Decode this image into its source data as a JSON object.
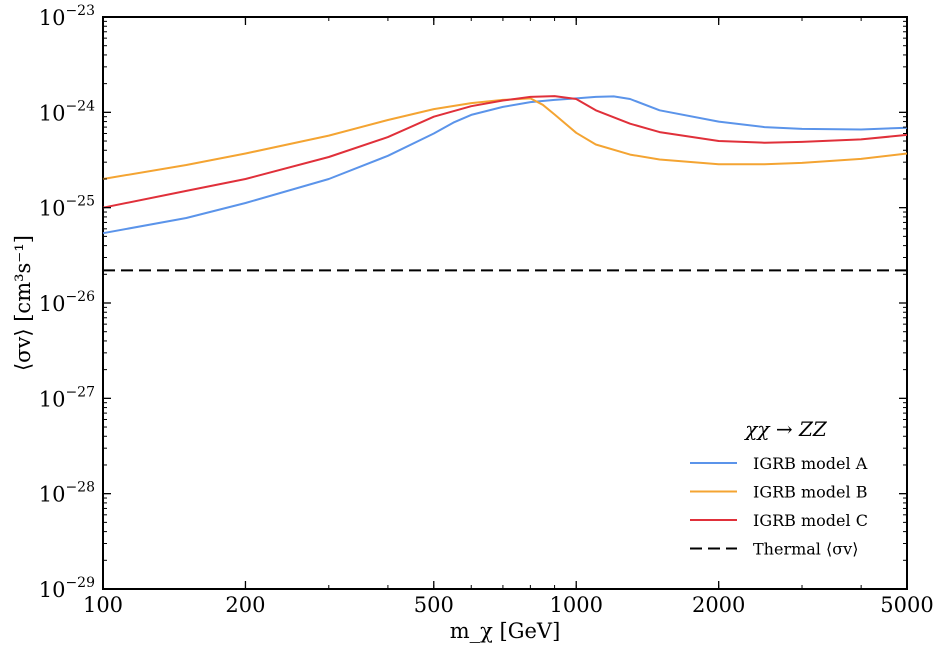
{
  "chart_data": {
    "type": "line",
    "xscale": "log",
    "yscale": "log",
    "xlim": [
      100,
      5000
    ],
    "ylim": [
      1e-29,
      1e-23
    ],
    "xlabel": "m_χ [GeV]",
    "ylabel": "⟨σv⟩ [cm³s⁻¹]",
    "x_ticks": [
      {
        "value": 100,
        "label": "100"
      },
      {
        "value": 200,
        "label": "200"
      },
      {
        "value": 500,
        "label": "500"
      },
      {
        "value": 1000,
        "label": "1000"
      },
      {
        "value": 2000,
        "label": "2000"
      },
      {
        "value": 5000,
        "label": "5000"
      }
    ],
    "y_ticks": [
      {
        "value": 1e-29,
        "base": "10",
        "exp": "−29"
      },
      {
        "value": 1e-28,
        "base": "10",
        "exp": "−28"
      },
      {
        "value": 1e-27,
        "base": "10",
        "exp": "−27"
      },
      {
        "value": 1e-26,
        "base": "10",
        "exp": "−26"
      },
      {
        "value": 1e-25,
        "base": "10",
        "exp": "−25"
      },
      {
        "value": 1e-24,
        "base": "10",
        "exp": "−24"
      },
      {
        "value": 1e-23,
        "base": "10",
        "exp": "−23"
      }
    ],
    "legend_title": "χχ → ZZ",
    "legend_position": "lower-right",
    "grid": false,
    "series": [
      {
        "name": "IGRB model A",
        "color": "#5b94ea",
        "dash": "solid",
        "x": [
          100,
          150,
          200,
          300,
          400,
          500,
          550,
          600,
          700,
          800,
          900,
          1000,
          1100,
          1200,
          1300,
          1500,
          2000,
          2500,
          3000,
          4000,
          5000
        ],
        "y": [
          5.4e-26,
          7.8e-26,
          1.12e-25,
          2e-25,
          3.5e-25,
          6e-25,
          7.8e-25,
          9.4e-25,
          1.14e-24,
          1.28e-24,
          1.35e-24,
          1.4e-24,
          1.45e-24,
          1.47e-24,
          1.38e-24,
          1.05e-24,
          8e-25,
          7e-25,
          6.7e-25,
          6.6e-25,
          6.9e-25
        ]
      },
      {
        "name": "IGRB model B",
        "color": "#f4a432",
        "dash": "solid",
        "x": [
          100,
          150,
          200,
          300,
          400,
          500,
          600,
          700,
          800,
          850,
          900,
          1000,
          1100,
          1300,
          1500,
          2000,
          2500,
          3000,
          4000,
          5000
        ],
        "y": [
          2e-25,
          2.8e-25,
          3.7e-25,
          5.7e-25,
          8.3e-25,
          1.08e-24,
          1.25e-24,
          1.35e-24,
          1.4e-24,
          1.2e-24,
          9.5e-25,
          6.1e-25,
          4.6e-25,
          3.6e-25,
          3.2e-25,
          2.85e-25,
          2.85e-25,
          2.95e-25,
          3.25e-25,
          3.7e-25
        ]
      },
      {
        "name": "IGRB model C",
        "color": "#e0303a",
        "dash": "solid",
        "x": [
          100,
          150,
          200,
          300,
          400,
          500,
          600,
          700,
          800,
          900,
          1000,
          1100,
          1300,
          1500,
          2000,
          2500,
          3000,
          4000,
          5000
        ],
        "y": [
          1e-25,
          1.5e-25,
          2e-25,
          3.4e-25,
          5.5e-25,
          9e-25,
          1.16e-24,
          1.33e-24,
          1.45e-24,
          1.48e-24,
          1.38e-24,
          1.05e-24,
          7.6e-25,
          6.2e-25,
          5e-25,
          4.8e-25,
          4.9e-25,
          5.2e-25,
          5.8e-25
        ]
      },
      {
        "name": "Thermal ⟨σv⟩",
        "color": "#000000",
        "dash": "dashed",
        "x": [
          100,
          5000
        ],
        "y": [
          2.2e-26,
          2.2e-26
        ]
      }
    ]
  }
}
